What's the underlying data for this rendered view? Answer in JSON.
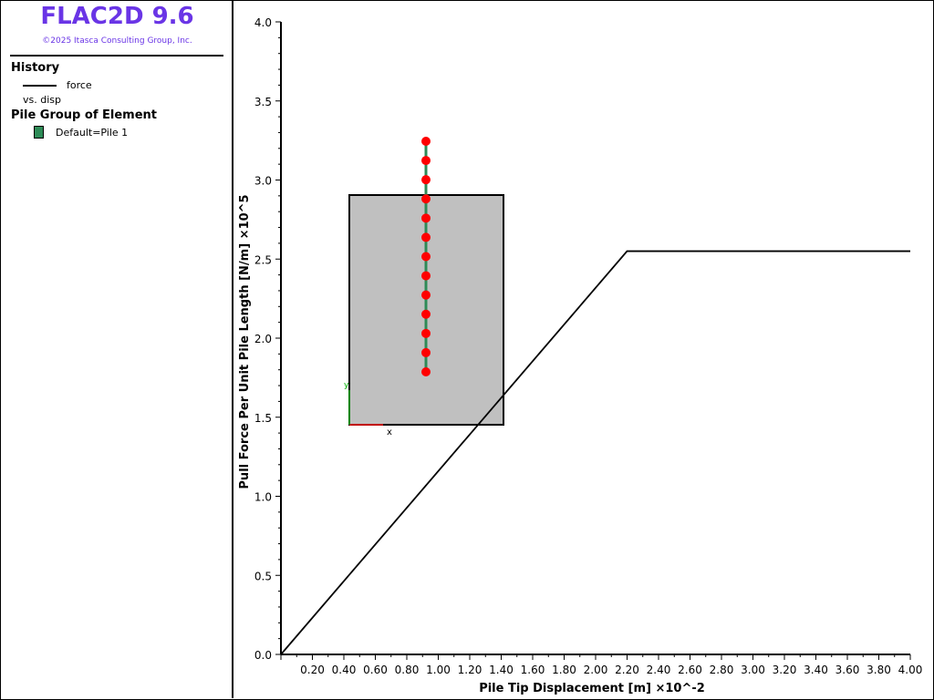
{
  "app": {
    "title": "FLAC2D 9.6",
    "copyright": "©2025 Itasca Consulting Group, Inc."
  },
  "legend": {
    "history_title": "History",
    "history_series": "force",
    "history_vs": "vs. disp",
    "pile_title": "Pile Group of Element",
    "pile_entry": "Default=Pile 1",
    "pile_color": "#2e8b57"
  },
  "chart_data": {
    "type": "line",
    "xlabel": "Pile Tip Displacement [m]  ×10^-2",
    "ylabel": "Pull Force Per Unit Pile Length [N/m]  ×10^5",
    "xlim": [
      0,
      4.0
    ],
    "ylim": [
      0,
      4.0
    ],
    "x_ticks": [
      "0.20",
      "0.40",
      "0.60",
      "0.80",
      "1.00",
      "1.20",
      "1.40",
      "1.60",
      "1.80",
      "2.00",
      "2.20",
      "2.40",
      "2.60",
      "2.80",
      "3.00",
      "3.20",
      "3.40",
      "3.60",
      "3.80",
      "4.00"
    ],
    "y_ticks": [
      "0.0",
      "0.5",
      "1.0",
      "1.5",
      "2.0",
      "2.5",
      "3.0",
      "3.5",
      "4.0"
    ],
    "series": [
      {
        "name": "force",
        "color": "#000000",
        "x": [
          0.0,
          2.2,
          4.0
        ],
        "y": [
          0.0,
          2.55,
          2.55
        ]
      }
    ],
    "inset": {
      "box_color": "#c0c0c0",
      "pile_color": "#2e8b57",
      "node_color": "#ff0000",
      "node_count": 13,
      "axis_x_label": "x",
      "axis_y_label": "y"
    }
  }
}
